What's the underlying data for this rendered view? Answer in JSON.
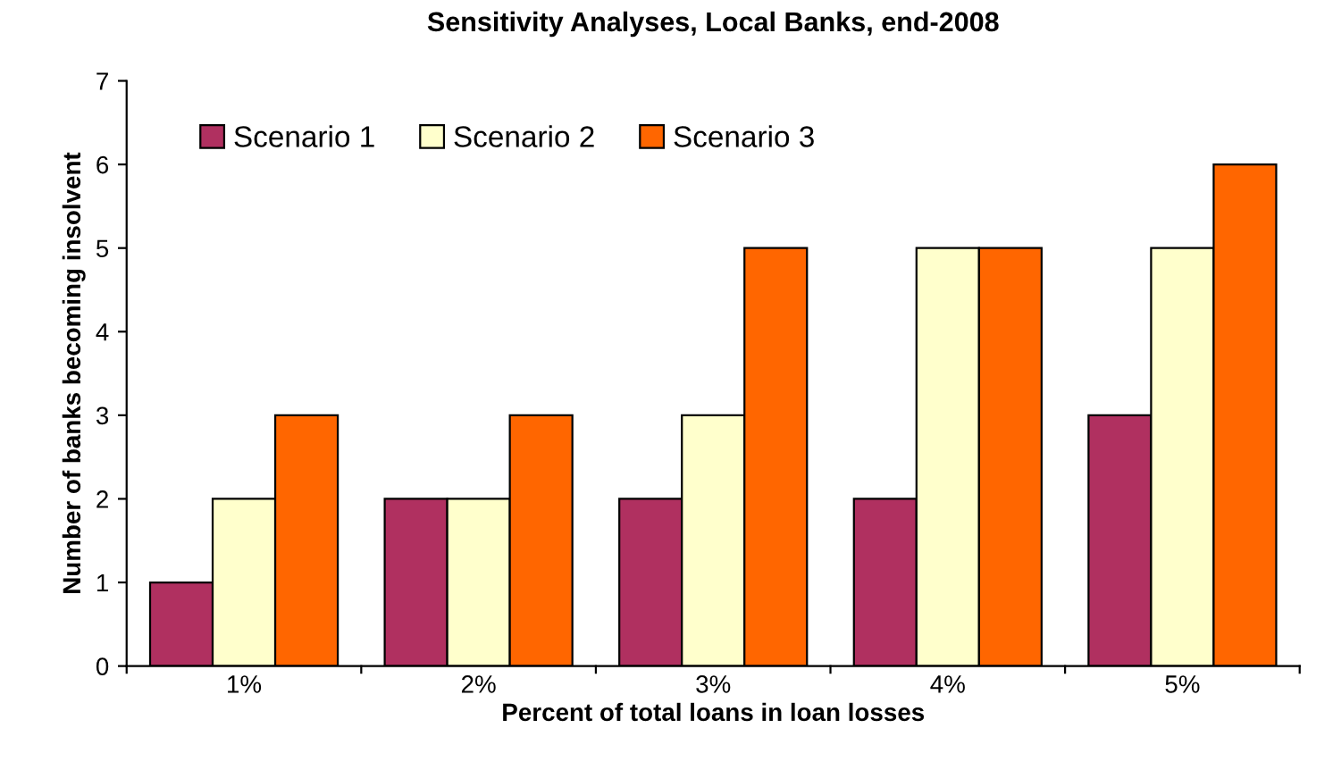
{
  "chart_data": {
    "type": "bar",
    "title": "Sensitivity Analyses, Local Banks, end-2008",
    "xlabel": "Percent of total loans in loan losses",
    "ylabel": "Number of banks becoming insolvent",
    "categories": [
      "1%",
      "2%",
      "3%",
      "4%",
      "5%"
    ],
    "series": [
      {
        "name": "Scenario 1",
        "color": "#b03060",
        "values": [
          1,
          2,
          2,
          2,
          3
        ]
      },
      {
        "name": "Scenario 2",
        "color": "#ffffcc",
        "values": [
          2,
          2,
          3,
          5,
          5
        ]
      },
      {
        "name": "Scenario 3",
        "color": "#ff6600",
        "values": [
          3,
          3,
          5,
          5,
          6
        ]
      }
    ],
    "ylim": [
      0,
      7
    ],
    "yticks": [
      0,
      1,
      2,
      3,
      4,
      5,
      6,
      7
    ],
    "grid": false,
    "legend": "top left"
  }
}
